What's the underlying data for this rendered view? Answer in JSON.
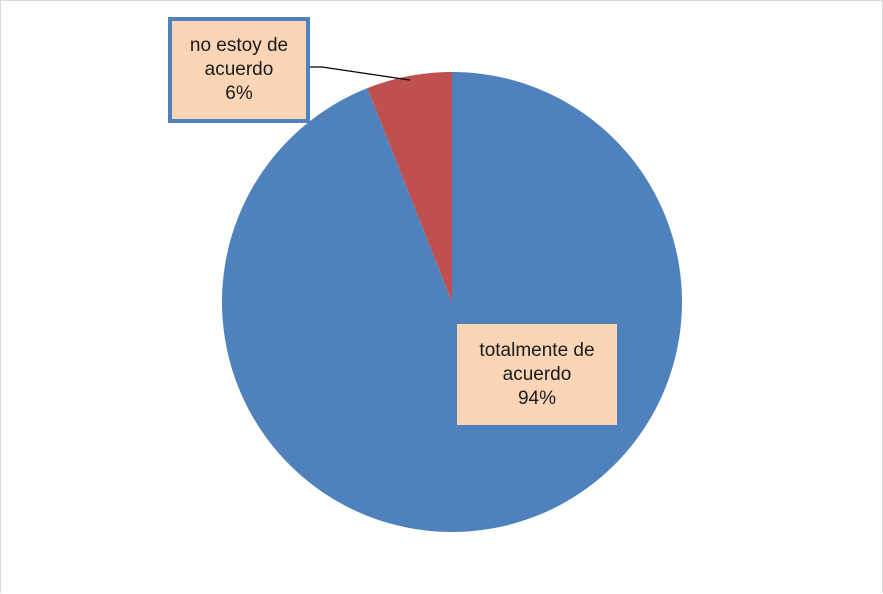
{
  "chart_data": {
    "type": "pie",
    "slices": [
      {
        "label": "totalmente de acuerdo",
        "label_lines": [
          "totalmente de",
          "acuerdo"
        ],
        "value": 94,
        "percent_text": "94%",
        "color": "#4f81bd"
      },
      {
        "label": "no estoy de acuerdo",
        "label_lines": [
          "no estoy de",
          "acuerdo"
        ],
        "value": 6,
        "percent_text": "6%",
        "color": "#c0504d"
      }
    ],
    "label_background": "#fbd5b5",
    "label_border_color": "#4f81bd"
  }
}
